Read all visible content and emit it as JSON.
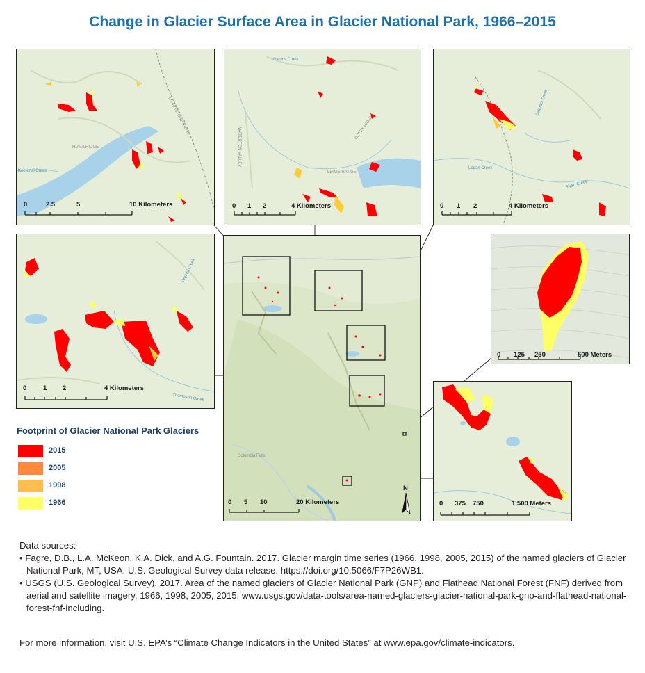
{
  "title": "Change in Glacier Surface Area in Glacier National Park, 1966–2015",
  "legend": {
    "title": "Footprint of Glacier National Park Glaciers",
    "items": [
      {
        "label": "2015",
        "color": "#ff0000"
      },
      {
        "label": "2005",
        "color": "#ff8a3d"
      },
      {
        "label": "1998",
        "color": "#ffbe4d"
      },
      {
        "label": "1966",
        "color": "#ffff66"
      }
    ]
  },
  "maps": {
    "overview": {
      "scalebar": {
        "ticks": [
          "0",
          "5",
          "10",
          "20 Kilometers"
        ]
      },
      "north_label": "N",
      "place_labels": [
        "Columbia Falls"
      ]
    },
    "inset_nw": {
      "scalebar": {
        "ticks": [
          "0",
          "2.5",
          "5",
          "10 Kilometers"
        ]
      },
      "place_labels": [
        "HUMA RIDGE",
        "LIVINGSTONE RIDGE",
        "Kootenai Creek"
      ]
    },
    "inset_nc": {
      "scalebar": {
        "ticks": [
          "0",
          "1",
          "2",
          "4 Kilometers"
        ]
      },
      "place_labels": [
        "LEWIS RANGE",
        "WATERTON VALLEY",
        "COTEY RIDGE",
        "Glenns Creek"
      ]
    },
    "inset_ne": {
      "scalebar": {
        "ticks": [
          "0",
          "1",
          "2",
          "4 Kilometers"
        ]
      },
      "place_labels": [
        "Logan Creek",
        "Cataract Creek",
        "Siyeh Creek"
      ]
    },
    "inset_w": {
      "scalebar": {
        "ticks": [
          "0",
          "1",
          "2",
          "4 Kilometers"
        ]
      },
      "place_labels": [
        "Thompson Creek",
        "Virginia Creek"
      ]
    },
    "inset_e": {
      "scalebar": {
        "ticks": [
          "0",
          "125",
          "250",
          "500 Meters"
        ]
      }
    },
    "inset_se": {
      "scalebar": {
        "ticks": [
          "0",
          "375",
          "750",
          "1,500 Meters"
        ]
      }
    }
  },
  "sources": {
    "heading": "Data sources:",
    "items": [
      "• Fagre, D.B., L.A. McKeon, K.A. Dick, and A.G. Fountain. 2017. Glacier margin time series (1966, 1998, 2005, 2015) of the named glaciers of Glacier National Park, MT, USA. U.S. Geological Survey data release. https://doi.org/10.5066/F7P26WB1.",
      "• USGS (U.S. Geological Survey). 2017. Area of the named glaciers of Glacier National Park (GNP) and Flathead National Forest (FNF) derived from aerial and satellite imagery, 1966, 1998, 2005, 2015. www.usgs.gov/data-tools/area-named-glaciers-glacier-national-park-gnp-and-flathead-national-forest-fnf-including."
    ]
  },
  "more_info": "For more information, visit U.S. EPA’s “Climate Change Indicators in the United States” at www.epa.gov/climate-indicators."
}
